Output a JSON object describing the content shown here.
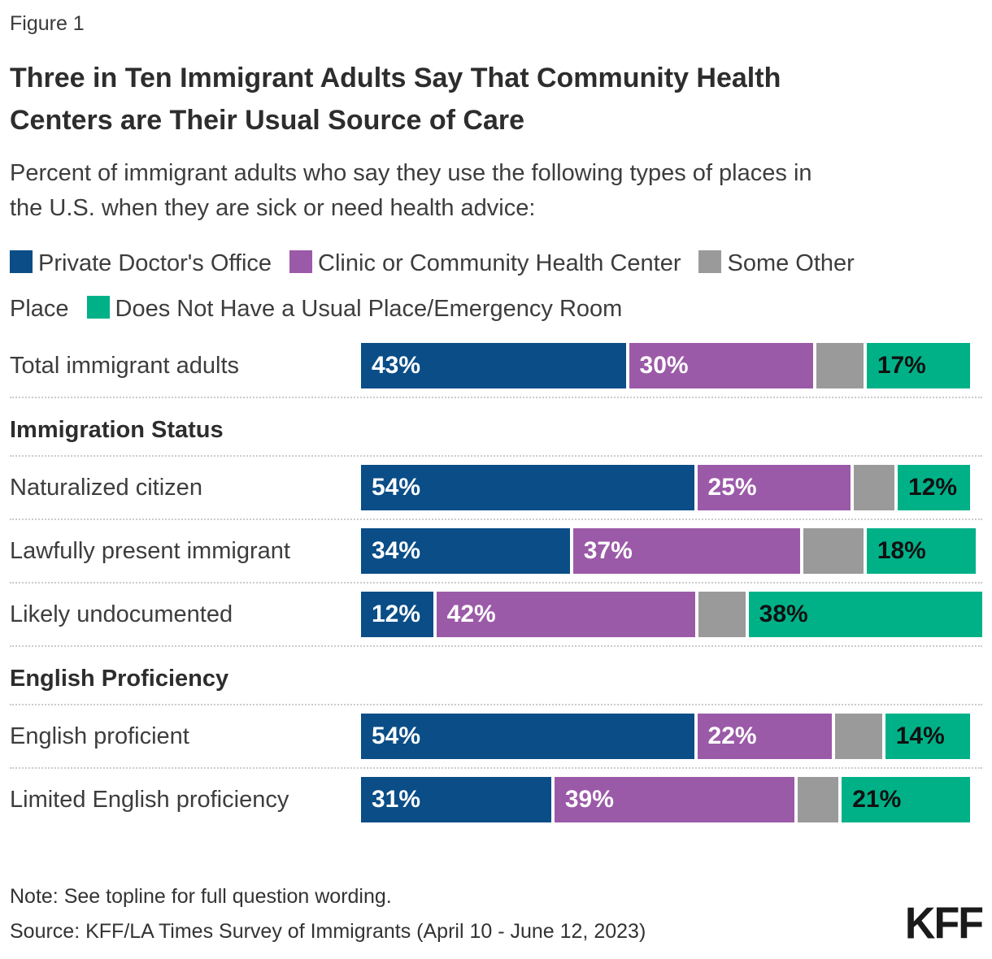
{
  "figure_label": "Figure 1",
  "title_lines": [
    "Three in Ten Immigrant Adults Say That Community Health",
    "Centers are Their Usual Source of Care"
  ],
  "subtitle_lines": [
    "Percent of immigrant adults who say they use the following types of places in",
    "the U.S. when they are sick or need health advice:"
  ],
  "colors": {
    "private_doctor": "#0A4D87",
    "clinic": "#9B5AA8",
    "some_other_place": "#9A9A9A",
    "no_usual_place": "#00B188",
    "divider": "#cccccc",
    "text_dark": "#2d2d2d"
  },
  "legend_rows": [
    [
      {
        "color": "#0A4D87",
        "text": "Private Doctor's Office"
      },
      {
        "color": "#9B5AA8",
        "text": "Clinic or Community Health Center"
      },
      {
        "color": "#9A9A9A",
        "text": "Some Other"
      }
    ],
    [
      {
        "color": null,
        "text": "Place"
      },
      {
        "color": "#00B188",
        "text": "Does Not Have a Usual Place/Emergency Room"
      }
    ]
  ],
  "chart_data": {
    "type": "bar",
    "orientation": "horizontal",
    "stacked": true,
    "units": "percent",
    "x_range": [
      0,
      100
    ],
    "grid": false,
    "legend_position": "top",
    "series": [
      {
        "name": "Private Doctor's Office",
        "color": "#0A4D87",
        "label_color": "#ffffff"
      },
      {
        "name": "Clinic or Community Health Center",
        "color": "#9B5AA8",
        "label_color": "#ffffff"
      },
      {
        "name": "Some Other Place",
        "color": "#9A9A9A",
        "label_color": null
      },
      {
        "name": "Does Not Have a Usual Place/Emergency Room",
        "color": "#00B188",
        "label_color": "#111111"
      }
    ],
    "unlabeled_note": "Gray 'Some Other Place' segments carry no data label in the figure; their values are estimated from segment widths.",
    "rows": [
      {
        "type": "bar",
        "label": "Total immigrant adults",
        "values": [
          43,
          30,
          8,
          17
        ],
        "value_labels": [
          "43%",
          "30%",
          null,
          "17%"
        ]
      },
      {
        "type": "section",
        "label": "Immigration Status"
      },
      {
        "type": "bar",
        "label": "Naturalized citizen",
        "values": [
          54,
          25,
          7,
          12
        ],
        "value_labels": [
          "54%",
          "25%",
          null,
          "12%"
        ]
      },
      {
        "type": "bar",
        "label": "Lawfully present immigrant",
        "values": [
          34,
          37,
          10,
          18
        ],
        "value_labels": [
          "34%",
          "37%",
          null,
          "18%"
        ]
      },
      {
        "type": "bar",
        "label": "Likely undocumented",
        "values": [
          12,
          42,
          8,
          38
        ],
        "value_labels": [
          "12%",
          "42%",
          null,
          "38%"
        ]
      },
      {
        "type": "section",
        "label": "English Proficiency"
      },
      {
        "type": "bar",
        "label": "English proficient",
        "values": [
          54,
          22,
          8,
          14
        ],
        "value_labels": [
          "54%",
          "22%",
          null,
          "14%"
        ]
      },
      {
        "type": "bar",
        "label": "Limited English proficiency",
        "values": [
          31,
          39,
          7,
          21
        ],
        "value_labels": [
          "31%",
          "39%",
          null,
          "21%"
        ]
      }
    ]
  },
  "footer": {
    "note": "Note: See topline for full question wording.",
    "source": "Source: KFF/LA Times Survey of Immigrants (April 10 - June 12, 2023)",
    "logo": "KFF"
  }
}
